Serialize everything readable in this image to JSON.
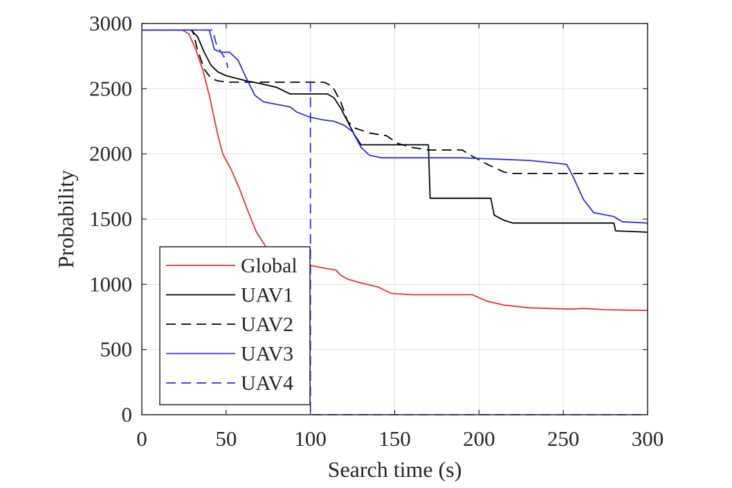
{
  "chart_data": {
    "type": "line",
    "title": "",
    "xlabel": "Search time (s)",
    "ylabel": "Probability",
    "xlim": [
      0,
      300
    ],
    "ylim": [
      0,
      3000
    ],
    "xticks": [
      0,
      50,
      100,
      150,
      200,
      250,
      300
    ],
    "yticks": [
      0,
      500,
      1000,
      1500,
      2000,
      2500,
      3000
    ],
    "grid": true,
    "legend_position": "bottom-left",
    "series": [
      {
        "name": "Global",
        "color": "#e8312f",
        "dash": "solid",
        "points": [
          [
            0,
            2950
          ],
          [
            24,
            2950
          ],
          [
            28,
            2920
          ],
          [
            32,
            2800
          ],
          [
            36,
            2650
          ],
          [
            40,
            2450
          ],
          [
            45,
            2150
          ],
          [
            48,
            2000
          ],
          [
            53,
            1880
          ],
          [
            58,
            1730
          ],
          [
            63,
            1560
          ],
          [
            68,
            1400
          ],
          [
            74,
            1280
          ],
          [
            80,
            1210
          ],
          [
            88,
            1180
          ],
          [
            95,
            1160
          ],
          [
            102,
            1140
          ],
          [
            110,
            1120
          ],
          [
            115,
            1110
          ],
          [
            118,
            1070
          ],
          [
            122,
            1040
          ],
          [
            130,
            1010
          ],
          [
            140,
            980
          ],
          [
            148,
            930
          ],
          [
            160,
            920
          ],
          [
            180,
            920
          ],
          [
            196,
            920
          ],
          [
            205,
            870
          ],
          [
            215,
            840
          ],
          [
            230,
            820
          ],
          [
            240,
            815
          ],
          [
            255,
            810
          ],
          [
            262,
            815
          ],
          [
            275,
            805
          ],
          [
            300,
            800
          ]
        ]
      },
      {
        "name": "UAV1",
        "color": "#000000",
        "dash": "solid",
        "points": [
          [
            0,
            2950
          ],
          [
            29,
            2950
          ],
          [
            33,
            2900
          ],
          [
            37,
            2780
          ],
          [
            41,
            2680
          ],
          [
            45,
            2630
          ],
          [
            50,
            2600
          ],
          [
            56,
            2580
          ],
          [
            62,
            2560
          ],
          [
            70,
            2540
          ],
          [
            80,
            2510
          ],
          [
            88,
            2460
          ],
          [
            100,
            2460
          ],
          [
            110,
            2460
          ],
          [
            114,
            2430
          ],
          [
            118,
            2350
          ],
          [
            122,
            2250
          ],
          [
            126,
            2150
          ],
          [
            130,
            2070
          ],
          [
            140,
            2070
          ],
          [
            170,
            2070
          ],
          [
            171,
            1660
          ],
          [
            180,
            1660
          ],
          [
            207,
            1660
          ],
          [
            209,
            1530
          ],
          [
            215,
            1490
          ],
          [
            220,
            1470
          ],
          [
            250,
            1470
          ],
          [
            280,
            1470
          ],
          [
            281,
            1410
          ],
          [
            300,
            1400
          ]
        ]
      },
      {
        "name": "UAV2",
        "color": "#000000",
        "dash": "dashed",
        "points": [
          [
            0,
            2950
          ],
          [
            30,
            2950
          ],
          [
            33,
            2800
          ],
          [
            37,
            2650
          ],
          [
            41,
            2580
          ],
          [
            45,
            2560
          ],
          [
            52,
            2550
          ],
          [
            62,
            2550
          ],
          [
            100,
            2550
          ],
          [
            108,
            2550
          ],
          [
            113,
            2520
          ],
          [
            118,
            2400
          ],
          [
            122,
            2250
          ],
          [
            126,
            2200
          ],
          [
            135,
            2160
          ],
          [
            145,
            2140
          ],
          [
            152,
            2080
          ],
          [
            160,
            2050
          ],
          [
            170,
            2030
          ],
          [
            190,
            2030
          ],
          [
            195,
            1990
          ],
          [
            205,
            1920
          ],
          [
            215,
            1860
          ],
          [
            220,
            1850
          ],
          [
            260,
            1850
          ],
          [
            300,
            1850
          ]
        ]
      },
      {
        "name": "UAV3",
        "color": "#2b2bf3",
        "dash": "solid",
        "points": [
          [
            0,
            2950
          ],
          [
            40,
            2950
          ],
          [
            43,
            2800
          ],
          [
            47,
            2780
          ],
          [
            52,
            2780
          ],
          [
            57,
            2720
          ],
          [
            62,
            2580
          ],
          [
            67,
            2450
          ],
          [
            72,
            2400
          ],
          [
            80,
            2380
          ],
          [
            88,
            2360
          ],
          [
            92,
            2320
          ],
          [
            100,
            2280
          ],
          [
            108,
            2260
          ],
          [
            114,
            2250
          ],
          [
            120,
            2220
          ],
          [
            125,
            2170
          ],
          [
            130,
            2050
          ],
          [
            135,
            1990
          ],
          [
            142,
            1970
          ],
          [
            160,
            1970
          ],
          [
            190,
            1970
          ],
          [
            210,
            1960
          ],
          [
            230,
            1950
          ],
          [
            245,
            1930
          ],
          [
            252,
            1920
          ],
          [
            256,
            1820
          ],
          [
            262,
            1650
          ],
          [
            268,
            1550
          ],
          [
            280,
            1520
          ],
          [
            285,
            1480
          ],
          [
            300,
            1470
          ]
        ]
      },
      {
        "name": "UAV4",
        "color": "#2b2bf3",
        "dash": "dashed",
        "points": [
          [
            0,
            2950
          ],
          [
            42,
            2950
          ],
          [
            44,
            2850
          ],
          [
            47,
            2780
          ],
          [
            50,
            2720
          ],
          [
            51,
            2660
          ]
        ]
      },
      {
        "name": "",
        "color": "#2b2bf3",
        "dash": "dashed",
        "points": [
          [
            100,
            2550
          ],
          [
            100,
            0
          ],
          [
            300,
            0
          ]
        ]
      }
    ],
    "xtick_labels": [
      "0",
      "50",
      "100",
      "150",
      "200",
      "250",
      "300"
    ],
    "ytick_labels": [
      "0",
      "500",
      "1000",
      "1500",
      "2000",
      "2500",
      "3000"
    ]
  }
}
